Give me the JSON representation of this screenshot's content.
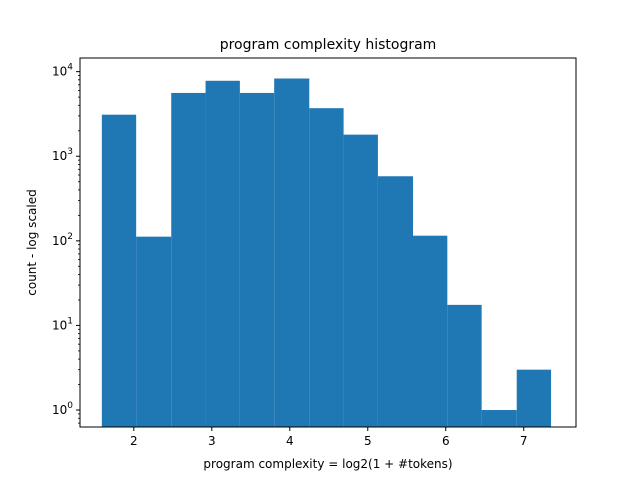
{
  "chart_data": {
    "type": "bar",
    "title": "program complexity histogram",
    "xlabel": "program complexity = log2(1 + #tokens)",
    "ylabel": "count - log scaled",
    "y_scale": "log",
    "xlim": [
      1.31,
      7.67
    ],
    "ylim": [
      0.63,
      14500
    ],
    "x_ticks": [
      2,
      3,
      4,
      5,
      6,
      7
    ],
    "y_ticks": [
      {
        "value": 1,
        "base": "10",
        "exp": "0"
      },
      {
        "value": 10,
        "base": "10",
        "exp": "1"
      },
      {
        "value": 100,
        "base": "10",
        "exp": "2"
      },
      {
        "value": 1000,
        "base": "10",
        "exp": "3"
      },
      {
        "value": 10000,
        "base": "10",
        "exp": "4"
      }
    ],
    "bins": [
      {
        "x0": 1.59,
        "x1": 2.03,
        "count": 3100
      },
      {
        "x0": 2.03,
        "x1": 2.48,
        "count": 112
      },
      {
        "x0": 2.48,
        "x1": 2.92,
        "count": 5600
      },
      {
        "x0": 2.92,
        "x1": 3.36,
        "count": 7800
      },
      {
        "x0": 3.36,
        "x1": 3.8,
        "count": 5600
      },
      {
        "x0": 3.8,
        "x1": 4.25,
        "count": 8300
      },
      {
        "x0": 4.25,
        "x1": 4.69,
        "count": 3700
      },
      {
        "x0": 4.69,
        "x1": 5.13,
        "count": 1800
      },
      {
        "x0": 5.13,
        "x1": 5.58,
        "count": 580
      },
      {
        "x0": 5.58,
        "x1": 6.02,
        "count": 115
      },
      {
        "x0": 6.02,
        "x1": 6.46,
        "count": 17.5
      },
      {
        "x0": 6.46,
        "x1": 6.91,
        "count": 1
      },
      {
        "x0": 6.91,
        "x1": 7.35,
        "count": 3
      }
    ],
    "colors": {
      "bar": "#1f77b4",
      "axes": "#000000",
      "background": "#ffffff"
    },
    "grid": false,
    "legend": "none"
  }
}
